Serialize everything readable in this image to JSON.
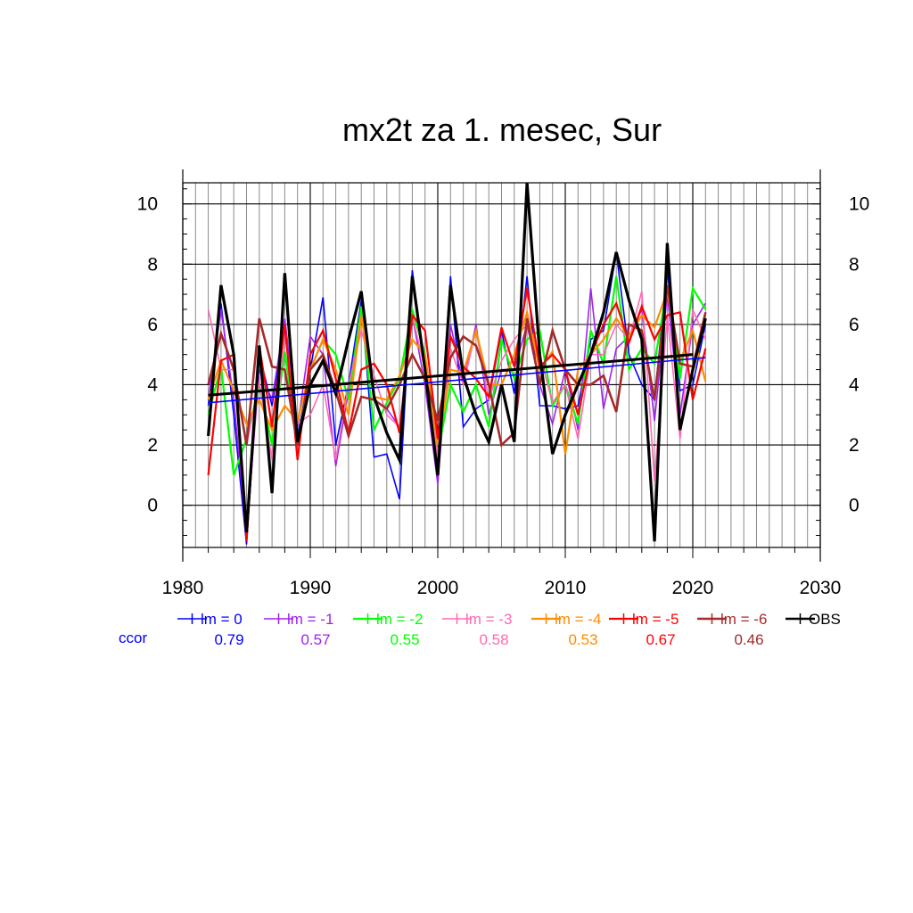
{
  "chart_data": {
    "type": "line",
    "title": "mx2t za 1. mesec, Sur",
    "xlabel": "",
    "ylabel": "",
    "xlim": [
      1980,
      2030
    ],
    "ylim": [
      -1.4,
      10.7
    ],
    "x_ticks": [
      1980,
      1990,
      2000,
      2010,
      2020,
      2030
    ],
    "y_ticks": [
      0,
      2,
      4,
      6,
      8,
      10
    ],
    "grid": true,
    "right_axis_labels": true,
    "legend_placement": "bottom",
    "ccor_label": "ccor",
    "ccor_color": "#0000ff",
    "x": [
      1982,
      1983,
      1984,
      1985,
      1986,
      1987,
      1988,
      1989,
      1990,
      1991,
      1992,
      1993,
      1994,
      1995,
      1996,
      1997,
      1998,
      1999,
      2000,
      2001,
      2002,
      2003,
      2004,
      2005,
      2006,
      2007,
      2008,
      2009,
      2010,
      2011,
      2012,
      2013,
      2014,
      2015,
      2016,
      2017,
      2018,
      2019,
      2020,
      2021
    ],
    "series": [
      {
        "name": "lm = 0",
        "color": "#0000ff",
        "width": 1.6,
        "ccor": "0.79",
        "values": [
          3.3,
          6.7,
          3.0,
          -1.3,
          5.0,
          3.3,
          6.0,
          2.3,
          4.5,
          6.9,
          2.0,
          4.0,
          6.8,
          1.6,
          1.7,
          0.2,
          7.8,
          4.5,
          1.2,
          7.6,
          2.6,
          3.2,
          3.5,
          5.8,
          3.7,
          7.6,
          3.3,
          3.3,
          3.2,
          3.3,
          5.5,
          5.8,
          8.4,
          5.0,
          4.0,
          3.5,
          7.8,
          3.8,
          4.0,
          6.0
        ]
      },
      {
        "name": "lm = -1",
        "color": "#a020f0",
        "width": 1.6,
        "ccor": "0.57",
        "values": [
          3.5,
          6.5,
          3.5,
          -1.0,
          4.5,
          3.5,
          6.2,
          2.6,
          5.6,
          5.0,
          1.3,
          3.8,
          6.5,
          3.5,
          3.2,
          2.6,
          6.3,
          4.0,
          0.7,
          6.0,
          4.0,
          6.0,
          3.0,
          4.5,
          4.5,
          6.0,
          4.0,
          2.7,
          4.5,
          2.5,
          7.2,
          3.2,
          5.2,
          5.6,
          6.5,
          2.8,
          7.0,
          3.0,
          6.0,
          6.7
        ]
      },
      {
        "name": "lm = -2",
        "color": "#00ff00",
        "width": 2.2,
        "ccor": "0.55",
        "values": [
          3.0,
          4.6,
          1.0,
          2.2,
          4.0,
          2.0,
          5.1,
          2.1,
          4.5,
          5.5,
          5.0,
          3.5,
          6.6,
          2.5,
          3.4,
          4.2,
          6.5,
          5.0,
          1.7,
          4.0,
          3.1,
          4.0,
          2.6,
          5.5,
          4.2,
          5.5,
          5.8,
          3.3,
          4.0,
          2.7,
          5.8,
          4.7,
          7.6,
          4.5,
          5.2,
          4.7,
          7.3,
          4.2,
          7.2,
          6.5
        ]
      },
      {
        "name": "lm = -3",
        "color": "#ff69b4",
        "width": 1.6,
        "ccor": "0.58",
        "values": [
          6.5,
          4.5,
          4.5,
          2.0,
          4.1,
          1.5,
          5.7,
          2.7,
          3.0,
          4.0,
          1.5,
          4.0,
          5.8,
          4.3,
          3.0,
          2.6,
          6.3,
          4.5,
          1.6,
          5.2,
          4.0,
          5.8,
          3.5,
          4.8,
          5.5,
          6.0,
          5.0,
          3.4,
          4.0,
          2.2,
          5.0,
          5.0,
          6.0,
          5.5,
          7.1,
          0.8,
          6.3,
          2.2,
          6.5,
          5.5
        ]
      },
      {
        "name": "lm = -4",
        "color": "#ff8c00",
        "width": 2.2,
        "ccor": "0.53",
        "values": [
          3.5,
          4.8,
          3.8,
          2.7,
          3.5,
          2.5,
          3.3,
          2.8,
          4.5,
          5.5,
          4.5,
          3.0,
          6.3,
          3.6,
          3.5,
          4.3,
          5.5,
          5.0,
          2.0,
          4.5,
          4.4,
          5.8,
          4.0,
          4.0,
          5.0,
          6.4,
          4.5,
          5.1,
          1.7,
          4.5,
          5.0,
          5.5,
          6.2,
          5.6,
          6.3,
          5.9,
          7.1,
          4.8,
          5.8,
          4.1
        ]
      },
      {
        "name": "lm = -5",
        "color": "#ff0000",
        "width": 2.2,
        "ccor": "0.67",
        "values": [
          1.0,
          4.8,
          5.0,
          -1.2,
          5.3,
          2.6,
          6.0,
          1.5,
          5.0,
          5.8,
          4.2,
          2.4,
          4.5,
          4.7,
          4.0,
          2.4,
          6.3,
          5.8,
          2.2,
          5.6,
          4.6,
          4.2,
          3.6,
          5.9,
          4.6,
          7.2,
          4.6,
          5.0,
          4.5,
          3.0,
          5.0,
          6.0,
          6.7,
          5.4,
          6.6,
          5.5,
          6.3,
          6.4,
          3.5,
          5.2
        ]
      },
      {
        "name": "lm = -6",
        "color": "#a52a2a",
        "width": 2.6,
        "ccor": "0.46",
        "values": [
          4.0,
          5.7,
          4.5,
          2.0,
          6.2,
          4.6,
          4.5,
          2.0,
          4.5,
          5.0,
          3.8,
          2.3,
          3.6,
          3.5,
          3.2,
          4.0,
          5.0,
          4.2,
          2.8,
          4.9,
          5.6,
          5.3,
          4.0,
          2.0,
          2.4,
          6.2,
          4.0,
          5.8,
          4.5,
          4.0,
          4.0,
          4.3,
          3.1,
          6.0,
          5.8,
          3.5,
          7.3,
          4.7,
          4.6,
          6.4
        ]
      },
      {
        "name": "OBS",
        "color": "#000000",
        "width": 3.2,
        "ccor": "",
        "values": [
          2.3,
          7.3,
          5.0,
          -0.9,
          5.3,
          0.4,
          7.7,
          2.1,
          4.0,
          4.8,
          3.7,
          5.5,
          7.1,
          3.6,
          2.4,
          1.5,
          7.6,
          4.5,
          1.0,
          7.3,
          4.3,
          3.0,
          2.1,
          4.0,
          2.1,
          10.7,
          5.0,
          1.7,
          3.0,
          4.0,
          5.0,
          6.4,
          8.4,
          6.8,
          5.5,
          -1.2,
          8.7,
          2.5,
          4.5,
          6.2
        ]
      }
    ],
    "trend_lines": [
      {
        "name": "lm = 0 trend",
        "color": "#0000ff",
        "width": 1.6,
        "x": [
          1982,
          2021
        ],
        "values": [
          3.4,
          4.9
        ]
      },
      {
        "name": "OBS trend",
        "color": "#000000",
        "width": 3.0,
        "x": [
          1982,
          2020
        ],
        "values": [
          3.65,
          5.0
        ]
      }
    ]
  }
}
